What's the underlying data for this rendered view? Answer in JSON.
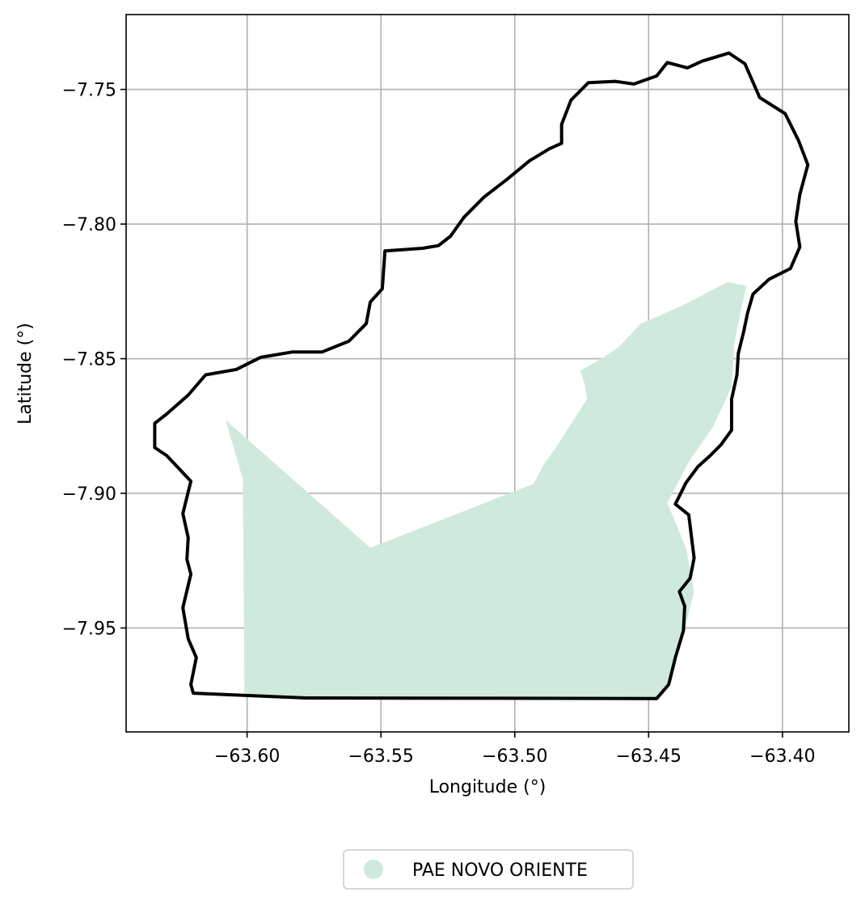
{
  "chart_data": {
    "type": "map",
    "xlabel": "Longitude (°)",
    "ylabel": "Latitude (°)",
    "xlim": [
      -63.6452,
      -63.3752
    ],
    "ylim": [
      -7.9886,
      -7.7222
    ],
    "x_ticks": [
      {
        "value": -63.6,
        "label": "−63.60"
      },
      {
        "value": -63.55,
        "label": "−63.55"
      },
      {
        "value": -63.5,
        "label": "−63.50"
      },
      {
        "value": -63.45,
        "label": "−63.45"
      },
      {
        "value": -63.4,
        "label": "−63.40"
      }
    ],
    "y_ticks": [
      {
        "value": -7.75,
        "label": "−7.75"
      },
      {
        "value": -7.8,
        "label": "−7.80"
      },
      {
        "value": -7.85,
        "label": "−7.85"
      },
      {
        "value": -7.9,
        "label": "−7.90"
      },
      {
        "value": -7.95,
        "label": "−7.95"
      }
    ],
    "grid": true,
    "legend": {
      "placement": "bottom-center",
      "entries": [
        {
          "label": "PAE NOVO ORIENTE",
          "color": "#cfeadd"
        }
      ]
    },
    "layers": [
      {
        "name": "PAE NOVO ORIENTE",
        "color": "#cfeadd",
        "geometry": [
          [
            -63.608,
            -7.8728
          ],
          [
            -63.554,
            -7.9202
          ],
          [
            -63.493,
            -7.8965
          ],
          [
            -63.4893,
            -7.8895
          ],
          [
            -63.485,
            -7.8835
          ],
          [
            -63.473,
            -7.865
          ],
          [
            -63.474,
            -7.859
          ],
          [
            -63.4754,
            -7.8545
          ],
          [
            -63.4661,
            -7.849
          ],
          [
            -63.461,
            -7.8455
          ],
          [
            -63.453,
            -7.837
          ],
          [
            -63.439,
            -7.831
          ],
          [
            -63.432,
            -7.8275
          ],
          [
            -63.4205,
            -7.8215
          ],
          [
            -63.4135,
            -7.823
          ],
          [
            -63.4155,
            -7.832
          ],
          [
            -63.418,
            -7.8445
          ],
          [
            -63.419,
            -7.8605
          ],
          [
            -63.426,
            -7.8755
          ],
          [
            -63.4345,
            -7.8875
          ],
          [
            -63.443,
            -7.9035
          ],
          [
            -63.436,
            -7.9205
          ],
          [
            -63.433,
            -7.9365
          ],
          [
            -63.4365,
            -7.9505
          ],
          [
            -63.442,
            -7.9695
          ],
          [
            -63.4445,
            -7.9745
          ],
          [
            -63.447,
            -7.9762
          ],
          [
            -63.578,
            -7.9762
          ],
          [
            -63.601,
            -7.9748
          ],
          [
            -63.6016,
            -7.8948
          ]
        ]
      },
      {
        "name": "boundary",
        "color": "#000000",
        "geometry": [
          [
            -63.6201,
            -7.9742
          ],
          [
            -63.578,
            -7.976
          ],
          [
            -63.447,
            -7.9762
          ],
          [
            -63.4425,
            -7.971
          ],
          [
            -63.44,
            -7.961
          ],
          [
            -63.437,
            -7.951
          ],
          [
            -63.4365,
            -7.942
          ],
          [
            -63.4385,
            -7.9365
          ],
          [
            -63.4345,
            -7.9315
          ],
          [
            -63.433,
            -7.924
          ],
          [
            -63.435,
            -7.908
          ],
          [
            -63.44,
            -7.904
          ],
          [
            -63.436,
            -7.896
          ],
          [
            -63.4315,
            -7.89
          ],
          [
            -63.427,
            -7.886
          ],
          [
            -63.423,
            -7.882
          ],
          [
            -63.419,
            -7.8765
          ],
          [
            -63.419,
            -7.865
          ],
          [
            -63.417,
            -7.856
          ],
          [
            -63.4165,
            -7.848
          ],
          [
            -63.4145,
            -7.84
          ],
          [
            -63.413,
            -7.833
          ],
          [
            -63.411,
            -7.826
          ],
          [
            -63.405,
            -7.8205
          ],
          [
            -63.397,
            -7.8165
          ],
          [
            -63.3935,
            -7.8085
          ],
          [
            -63.395,
            -7.799
          ],
          [
            -63.3935,
            -7.789
          ],
          [
            -63.3905,
            -7.778
          ],
          [
            -63.394,
            -7.769
          ],
          [
            -63.399,
            -7.759
          ],
          [
            -63.4085,
            -7.753
          ],
          [
            -63.414,
            -7.7405
          ],
          [
            -63.42,
            -7.7365
          ],
          [
            -63.43,
            -7.7395
          ],
          [
            -63.4355,
            -7.742
          ],
          [
            -63.443,
            -7.74
          ],
          [
            -63.447,
            -7.745
          ],
          [
            -63.4555,
            -7.748
          ],
          [
            -63.4625,
            -7.747
          ],
          [
            -63.4725,
            -7.7475
          ],
          [
            -63.479,
            -7.754
          ],
          [
            -63.4825,
            -7.763
          ],
          [
            -63.4825,
            -7.77
          ],
          [
            -63.487,
            -7.772
          ],
          [
            -63.4945,
            -7.7765
          ],
          [
            -63.503,
            -7.7835
          ],
          [
            -63.5115,
            -7.79
          ],
          [
            -63.519,
            -7.7975
          ],
          [
            -63.524,
            -7.8045
          ],
          [
            -63.5285,
            -7.808
          ],
          [
            -63.5345,
            -7.809
          ],
          [
            -63.5485,
            -7.81
          ],
          [
            -63.5495,
            -7.824
          ],
          [
            -63.554,
            -7.829
          ],
          [
            -63.5555,
            -7.837
          ],
          [
            -63.562,
            -7.8435
          ],
          [
            -63.572,
            -7.8475
          ],
          [
            -63.583,
            -7.8475
          ],
          [
            -63.595,
            -7.8495
          ],
          [
            -63.604,
            -7.854
          ],
          [
            -63.6155,
            -7.856
          ],
          [
            -63.622,
            -7.8635
          ],
          [
            -63.63,
            -7.8705
          ],
          [
            -63.6345,
            -7.874
          ],
          [
            -63.6345,
            -7.883
          ],
          [
            -63.63,
            -7.886
          ],
          [
            -63.621,
            -7.8955
          ],
          [
            -63.624,
            -7.9075
          ],
          [
            -63.622,
            -7.9165
          ],
          [
            -63.6225,
            -7.9245
          ],
          [
            -63.621,
            -7.93
          ],
          [
            -63.624,
            -7.9425
          ],
          [
            -63.622,
            -7.954
          ],
          [
            -63.619,
            -7.961
          ],
          [
            -63.621,
            -7.971
          ],
          [
            -63.6201,
            -7.9742
          ]
        ]
      }
    ]
  }
}
